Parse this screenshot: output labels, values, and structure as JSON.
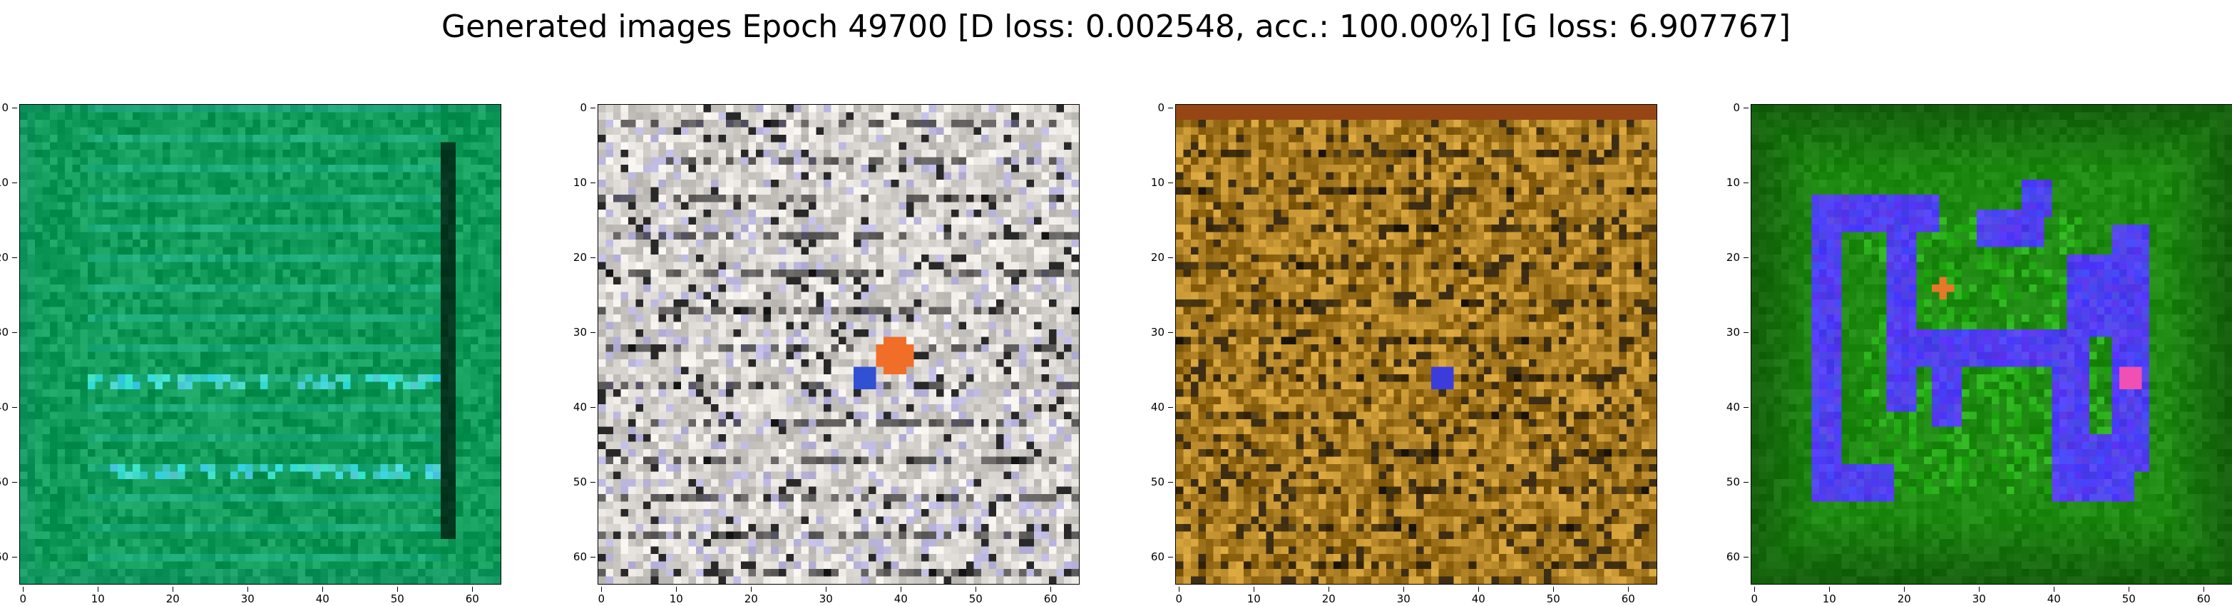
{
  "title": "Generated images Epoch 49700 [D loss: 0.002548, acc.: 100.00%] [G loss: 6.907767]",
  "ticks": {
    "y": [
      "0",
      "10",
      "20",
      "30",
      "40",
      "50",
      "60"
    ],
    "x": [
      "0",
      "10",
      "20",
      "30",
      "40",
      "50",
      "60"
    ]
  },
  "image_resolution": 64,
  "panels": [
    {
      "palette": "teal-green",
      "base": "#0f9a5a",
      "accent": "#3fd4d0"
    },
    {
      "palette": "white-gray-noise",
      "base": "#d9d6d2",
      "accent": "#a6a0e6"
    },
    {
      "palette": "golden-brown",
      "base": "#c38a1c",
      "accent": "#f0c86a"
    },
    {
      "palette": "green-blue-glyph",
      "base": "#1e8a12",
      "accent": "#5040f0"
    }
  ]
}
